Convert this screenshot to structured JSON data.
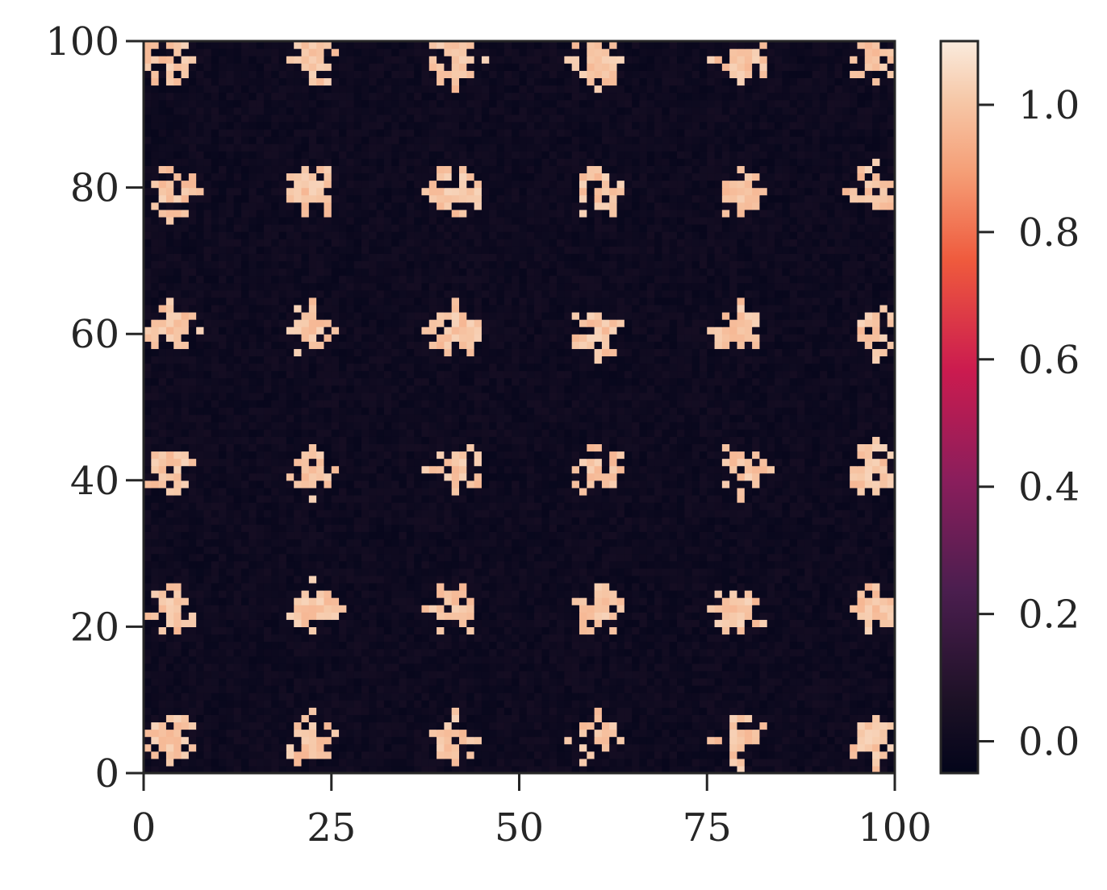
{
  "chart_data": {
    "type": "heatmap",
    "title": "",
    "xlabel": "",
    "ylabel": "",
    "xlim": [
      0,
      100
    ],
    "ylim": [
      0,
      100
    ],
    "grid": false,
    "colormap": "rocket",
    "color_range": [
      -0.05,
      1.1
    ],
    "x_ticks": [
      0,
      25,
      50,
      75,
      100
    ],
    "y_ticks": [
      0,
      20,
      40,
      60,
      80,
      100
    ],
    "colorbar_ticks": [
      0.0,
      0.2,
      0.4,
      0.6,
      0.8,
      1.0
    ],
    "x_tick_labels": [
      "0",
      "25",
      "50",
      "75",
      "100"
    ],
    "y_tick_labels": [
      "0",
      "20",
      "40",
      "60",
      "80",
      "100"
    ],
    "colorbar_tick_labels": [
      "0.0",
      "0.2",
      "0.4",
      "0.6",
      "0.8",
      "1.0"
    ],
    "grid_size": [
      100,
      100
    ],
    "background_value": 0.0,
    "cluster_value": 1.0,
    "cluster_rows_y": [
      4,
      22,
      41,
      60,
      79,
      97
    ],
    "cluster_cols_x": [
      3,
      22,
      41,
      60,
      79,
      97
    ],
    "cluster_radius": 4
  },
  "colors": {
    "cmap_stops": [
      {
        "v": 0.0,
        "c": "#03051a"
      },
      {
        "v": 0.1,
        "c": "#1d1126"
      },
      {
        "v": 0.25,
        "c": "#4b1e4f"
      },
      {
        "v": 0.4,
        "c": "#8a1e5c"
      },
      {
        "v": 0.55,
        "c": "#cb1b4f"
      },
      {
        "v": 0.7,
        "c": "#ef5a3d"
      },
      {
        "v": 0.82,
        "c": "#f59e76"
      },
      {
        "v": 0.92,
        "c": "#f6c8a8"
      },
      {
        "v": 1.0,
        "c": "#faebdd"
      }
    ],
    "axis": "#262626"
  }
}
